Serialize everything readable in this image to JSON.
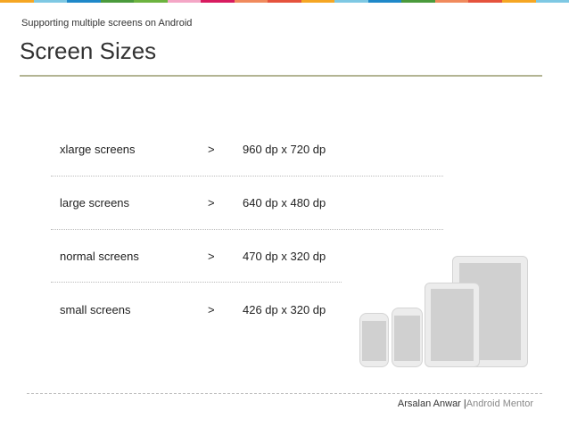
{
  "colors": {
    "top_bar": [
      "#f5a623",
      "#7ec8e3",
      "#1e88c9",
      "#4a9a3c",
      "#6cb33f",
      "#f4a6c6",
      "#d81b60",
      "#f08a5d",
      "#e5533d",
      "#f5a623",
      "#7ec8e3",
      "#1e88c9",
      "#4a9a3c",
      "#f08a5d",
      "#e5533d",
      "#f5a623",
      "#7ec8e3"
    ],
    "rule": "#b3b493"
  },
  "header": {
    "subtitle": "Supporting multiple screens on Android",
    "title": "Screen Sizes"
  },
  "rows": [
    {
      "name": "xlarge screens",
      "arrow": ">",
      "size": "960 dp x 720 dp"
    },
    {
      "name": "large screens",
      "arrow": ">",
      "size": "640 dp x 480 dp"
    },
    {
      "name": "normal screens",
      "arrow": ">",
      "size": "470 dp x 320 dp"
    },
    {
      "name": "small screens",
      "arrow": ">",
      "size": "426 dp x 320 dp"
    }
  ],
  "footer": {
    "author": "Arsalan Anwar",
    "separator": "|",
    "role": "Android Mentor"
  }
}
